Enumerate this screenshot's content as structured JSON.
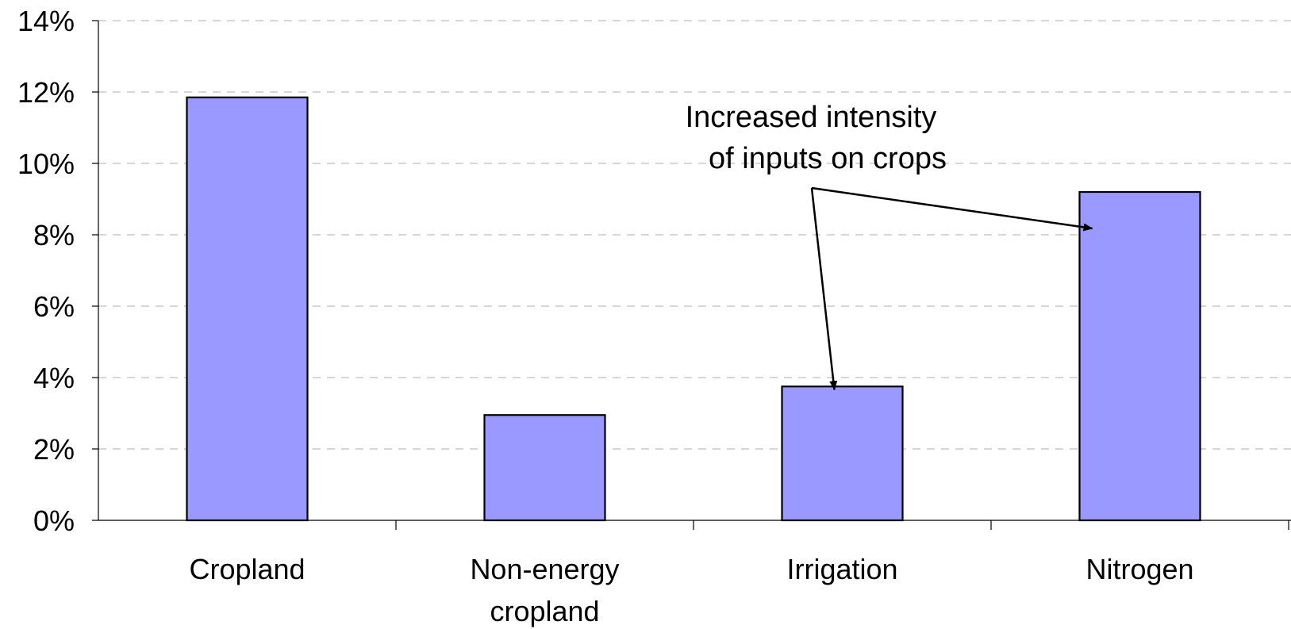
{
  "chart_data": {
    "type": "bar",
    "categories": [
      [
        "Cropland"
      ],
      [
        "Non-energy",
        "cropland"
      ],
      [
        "Irrigation"
      ],
      [
        "Nitrogen"
      ]
    ],
    "values": [
      11.85,
      2.95,
      3.75,
      9.2
    ],
    "ylim": [
      0,
      14
    ],
    "yticks": [
      0,
      2,
      4,
      6,
      8,
      10,
      12,
      14
    ],
    "ytick_labels": [
      "0%",
      "2%",
      "4%",
      "6%",
      "8%",
      "10%",
      "12%",
      "14%"
    ],
    "grid": true,
    "bar_color": "#9999ff",
    "annotation": {
      "lines": [
        "Increased intensity",
        "of inputs on crops"
      ],
      "points_to": [
        "Irrigation",
        "Nitrogen"
      ]
    }
  }
}
